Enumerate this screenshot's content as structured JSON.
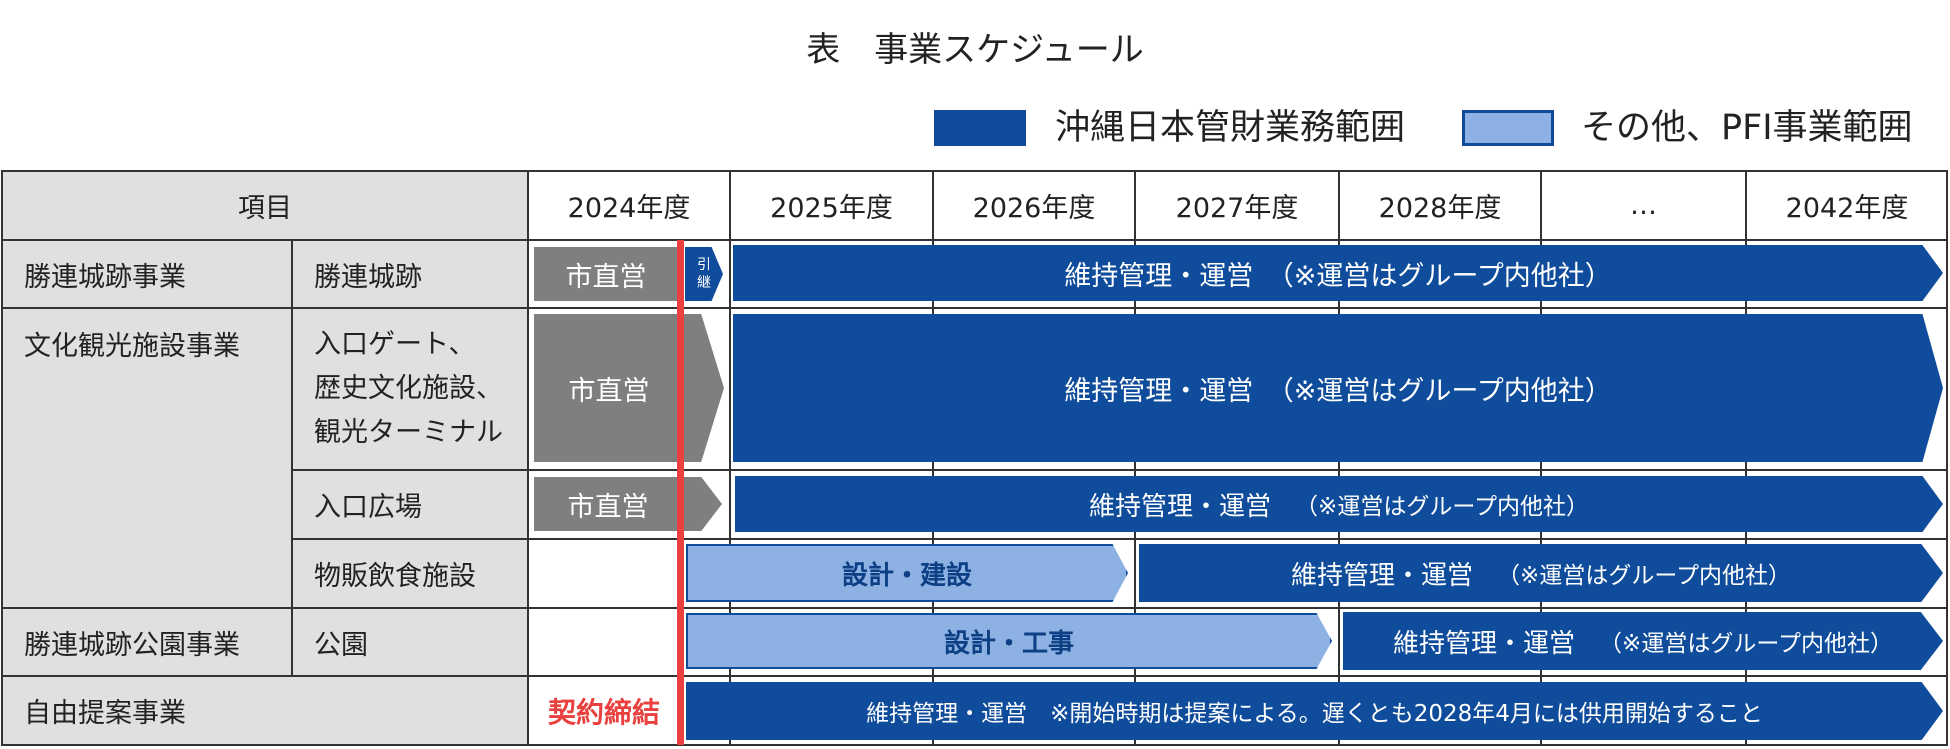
{
  "title": "表　事業スケジュール",
  "legend": [
    {
      "label": "沖縄日本管財業務範囲",
      "color": "#0f4c9b"
    },
    {
      "label": "その他、PFI事業範囲",
      "color": "#8db1e2"
    }
  ],
  "table": {
    "header_item": "項目",
    "years": [
      "2024年度",
      "2025年度",
      "2026年度",
      "2027年度",
      "2028年度",
      "…",
      "2042年度"
    ],
    "rows": {
      "r1_cat": "勝連城跡事業",
      "r1_sub": "勝連城跡",
      "r2_cat": "文化観光施設事業",
      "r2_sub_lines": [
        "入口ゲート、",
        "歴史文化施設、",
        "観光ターミナル"
      ],
      "r3_sub": "入口広場",
      "r4_sub": "物販飲食施設",
      "r5_cat": "勝連城跡公園事業",
      "r5_sub": "公園",
      "r6_cat": "自由提案事業"
    }
  },
  "bars": {
    "city": "市直営",
    "hikitsugi": [
      "引",
      "継"
    ],
    "ops_r1": "維持管理・運営　（※運営はグループ内他社）",
    "ops_r2": "維持管理・運営　（※運営はグループ内他社）",
    "ops_r3_main": "維持管理・運営",
    "ops_r3_note": "（※運営はグループ内他社）",
    "design_r4": "設計・建設",
    "ops_r4_main": "維持管理・運営",
    "ops_r4_note": "（※運営はグループ内他社）",
    "design_r5": "設計・工事",
    "ops_r5_main": "維持管理・運営",
    "ops_r5_note": "（※運営はグループ内他社）",
    "ops_r6": "維持管理・運営　※開始時期は提案による。遅くとも2028年4月には供用開始すること",
    "contract": "契約締結"
  }
}
